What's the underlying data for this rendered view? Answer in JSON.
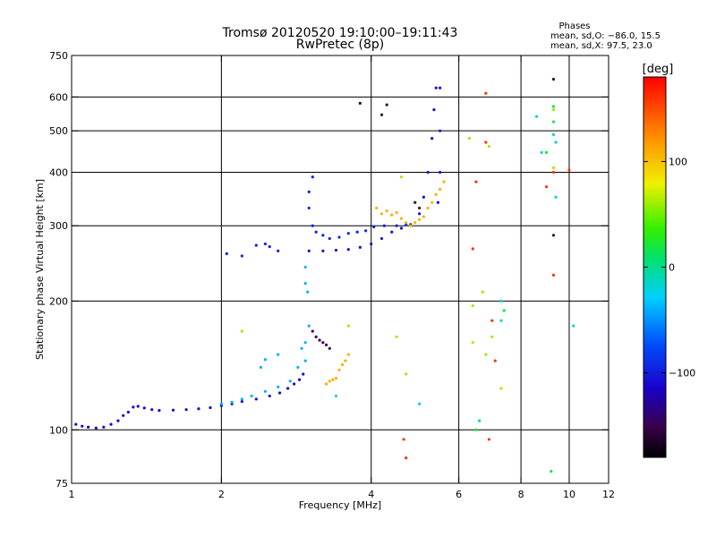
{
  "chart_data": {
    "type": "scatter",
    "title": "Tromsø 20120520 19:10:00–19:11:43",
    "subtitle": "RwPretec (8p)",
    "xlabel": "Frequency [MHz]",
    "ylabel": "Stationary phase Virtual Height [km]",
    "x_scale": "log",
    "y_scale": "log",
    "xlim": [
      1,
      12
    ],
    "ylim": [
      75,
      750
    ],
    "x_ticks": [
      1,
      2,
      4,
      6,
      8,
      10,
      12
    ],
    "x_tick_labels": [
      "1",
      "2",
      "4",
      "6",
      "8",
      "10",
      "12"
    ],
    "x_grid": [
      2,
      4,
      6,
      8,
      10
    ],
    "y_ticks": [
      75,
      100,
      200,
      300,
      400,
      500,
      600,
      750
    ],
    "y_tick_labels": [
      "75",
      "100",
      "200",
      "300",
      "400",
      "500",
      "600",
      "750"
    ],
    "y_grid": [
      100,
      200,
      300,
      400,
      500,
      600
    ],
    "grid": true,
    "phase_summary": {
      "heading": "Phases",
      "line_o": "mean, sd,O: −86.0, 15.5",
      "line_x": "mean, sd,X:  97.5, 23.0"
    },
    "colorbar": {
      "label": "[deg]",
      "range": [
        -180,
        180
      ],
      "ticks": [
        100,
        0,
        -100
      ],
      "tick_labels": [
        "100",
        "0",
        "−100"
      ]
    },
    "series": [
      {
        "color_value": -110,
        "points": [
          [
            1.02,
            103
          ],
          [
            1.05,
            102
          ],
          [
            1.08,
            101.5
          ],
          [
            1.12,
            101
          ],
          [
            1.16,
            101.5
          ],
          [
            1.2,
            103
          ],
          [
            1.24,
            105
          ],
          [
            1.27,
            108
          ],
          [
            1.3,
            110
          ],
          [
            1.33,
            113
          ],
          [
            1.36,
            113.5
          ],
          [
            1.4,
            112.5
          ],
          [
            1.45,
            111.5
          ],
          [
            1.5,
            111
          ],
          [
            1.6,
            111.2
          ],
          [
            1.7,
            111.5
          ],
          [
            1.8,
            112
          ],
          [
            1.9,
            112.7
          ],
          [
            2.0,
            114
          ],
          [
            2.1,
            115
          ],
          [
            2.2,
            116.5
          ],
          [
            2.35,
            118
          ],
          [
            2.5,
            120
          ],
          [
            2.62,
            122
          ],
          [
            2.72,
            125
          ],
          [
            2.8,
            128
          ],
          [
            2.87,
            131
          ],
          [
            2.92,
            135
          ]
        ]
      },
      {
        "color_value": -105,
        "points": [
          [
            3.0,
            262
          ],
          [
            3.2,
            262
          ],
          [
            3.4,
            263
          ],
          [
            3.6,
            264
          ],
          [
            3.8,
            267
          ],
          [
            4.0,
            272
          ],
          [
            4.2,
            280
          ],
          [
            4.4,
            290
          ],
          [
            4.6,
            296
          ],
          [
            4.8,
            302
          ],
          [
            5.0,
            320
          ],
          [
            5.1,
            350
          ],
          [
            5.2,
            400
          ],
          [
            5.3,
            480
          ],
          [
            5.35,
            560
          ],
          [
            5.4,
            630
          ],
          [
            5.5,
            630
          ],
          [
            5.5,
            500
          ],
          [
            5.5,
            400
          ],
          [
            5.45,
            340
          ]
        ]
      },
      {
        "color_value": -95,
        "points": [
          [
            3.0,
            330
          ],
          [
            3.05,
            300
          ],
          [
            3.1,
            290
          ],
          [
            3.2,
            285
          ],
          [
            3.3,
            280
          ],
          [
            3.45,
            282
          ],
          [
            3.6,
            288
          ],
          [
            3.75,
            290
          ],
          [
            3.9,
            292
          ],
          [
            4.05,
            298
          ],
          [
            4.25,
            300
          ],
          [
            4.5,
            300
          ],
          [
            4.7,
            302
          ],
          [
            3.0,
            360
          ],
          [
            3.05,
            390
          ],
          [
            2.5,
            268
          ],
          [
            2.6,
            262
          ],
          [
            2.45,
            272
          ],
          [
            2.35,
            270
          ],
          [
            2.05,
            258
          ],
          [
            2.2,
            255
          ]
        ]
      },
      {
        "color_value": 110,
        "points": [
          [
            4.1,
            330
          ],
          [
            4.2,
            320
          ],
          [
            4.3,
            325
          ],
          [
            4.4,
            318
          ],
          [
            4.5,
            322
          ],
          [
            4.6,
            312
          ],
          [
            4.7,
            305
          ],
          [
            4.8,
            300
          ],
          [
            4.9,
            305
          ],
          [
            5.0,
            310
          ],
          [
            5.1,
            315
          ],
          [
            5.2,
            330
          ],
          [
            5.3,
            340
          ],
          [
            5.4,
            355
          ],
          [
            5.5,
            365
          ],
          [
            5.6,
            380
          ],
          [
            3.3,
            130
          ],
          [
            3.4,
            132
          ],
          [
            3.45,
            138
          ],
          [
            3.5,
            142
          ],
          [
            3.55,
            145
          ],
          [
            3.6,
            150
          ],
          [
            3.35,
            131
          ],
          [
            3.25,
            128
          ]
        ]
      },
      {
        "color_value": -40,
        "points": [
          [
            2.0,
            115
          ],
          [
            2.1,
            116
          ],
          [
            2.2,
            118
          ],
          [
            2.3,
            120
          ],
          [
            2.45,
            123
          ],
          [
            2.6,
            126
          ],
          [
            2.75,
            130
          ],
          [
            2.95,
            160
          ],
          [
            3.0,
            175
          ],
          [
            2.9,
            155
          ],
          [
            2.95,
            145
          ],
          [
            2.85,
            140
          ],
          [
            2.45,
            146
          ],
          [
            2.6,
            150
          ],
          [
            2.4,
            140
          ],
          [
            2.95,
            220
          ],
          [
            2.95,
            240
          ],
          [
            2.98,
            210
          ]
        ]
      },
      {
        "color_value": -150,
        "points": [
          [
            3.05,
            170
          ],
          [
            3.1,
            165
          ],
          [
            3.2,
            160
          ],
          [
            3.25,
            158
          ],
          [
            3.3,
            155
          ],
          [
            3.15,
            162
          ],
          [
            4.3,
            575
          ],
          [
            3.8,
            580
          ],
          [
            4.2,
            545
          ],
          [
            9.3,
            660
          ],
          [
            9.3,
            285
          ],
          [
            4.9,
            340
          ],
          [
            5.0,
            330
          ]
        ]
      },
      {
        "color_value": 160,
        "points": [
          [
            4.65,
            95
          ],
          [
            4.7,
            86
          ],
          [
            6.8,
            612
          ],
          [
            6.5,
            380
          ],
          [
            6.8,
            470
          ],
          [
            6.9,
            95
          ],
          [
            9.3,
            400
          ],
          [
            10.0,
            405
          ],
          [
            9.3,
            230
          ],
          [
            9.0,
            370
          ],
          [
            6.4,
            265
          ],
          [
            7.0,
            180
          ],
          [
            7.1,
            145
          ]
        ]
      },
      {
        "color_value": 60,
        "points": [
          [
            6.3,
            480
          ],
          [
            6.9,
            460
          ],
          [
            6.4,
            160
          ],
          [
            6.8,
            150
          ],
          [
            7.0,
            165
          ],
          [
            7.3,
            125
          ],
          [
            6.6,
            105
          ],
          [
            6.4,
            195
          ],
          [
            9.3,
            560
          ],
          [
            9.3,
            410
          ],
          [
            4.6,
            390
          ],
          [
            3.6,
            175
          ],
          [
            2.2,
            170
          ],
          [
            4.7,
            135
          ],
          [
            4.5,
            165
          ],
          [
            6.7,
            210
          ]
        ]
      },
      {
        "color_value": -20,
        "points": [
          [
            8.6,
            540
          ],
          [
            8.8,
            445
          ],
          [
            9.3,
            490
          ],
          [
            9.4,
            470
          ],
          [
            9.4,
            350
          ],
          [
            10.2,
            175
          ],
          [
            5.0,
            115
          ],
          [
            3.4,
            120
          ],
          [
            7.3,
            200
          ],
          [
            7.3,
            180
          ],
          [
            6.6,
            105
          ]
        ]
      },
      {
        "color_value": 20,
        "points": [
          [
            9.3,
            525
          ],
          [
            9.3,
            570
          ],
          [
            9.2,
            80
          ],
          [
            7.4,
            190
          ],
          [
            9.0,
            445
          ],
          [
            6.5,
            100
          ]
        ]
      }
    ]
  }
}
